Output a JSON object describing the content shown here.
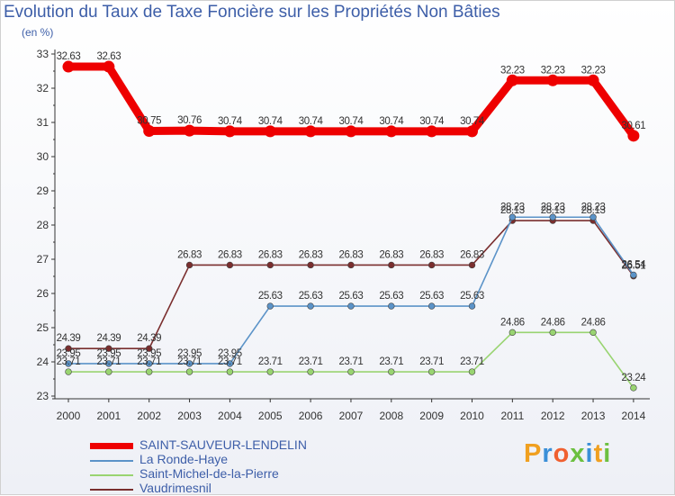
{
  "title": "Evolution du Taux de Taxe Foncière sur les Propriétés Non Bâties",
  "unit_label": "(en %)",
  "logo": {
    "text": "Proxiti",
    "colors": [
      "#f0a020",
      "#3a8fd8",
      "#f06030",
      "#6cc040",
      "#3a8fd8",
      "#f0a020",
      "#6cc040"
    ]
  },
  "chart_data": {
    "type": "line",
    "title": "Evolution du Taux de Taxe Foncière sur les Propriétés Non Bâties",
    "ylabel": "(en %)",
    "xlabel": "",
    "ylim": [
      23,
      33
    ],
    "yticks": [
      "23",
      "24",
      "25",
      "26",
      "27",
      "28",
      "29",
      "30",
      "31",
      "32",
      "33"
    ],
    "grid": false,
    "legend_position": "bottom",
    "categories": [
      "2000",
      "2001",
      "2002",
      "2003",
      "2004",
      "2005",
      "2006",
      "2007",
      "2008",
      "2009",
      "2010",
      "2011",
      "2012",
      "2013",
      "2014"
    ],
    "series": [
      {
        "name": "SAINT-SAUVEUR-LENDELIN",
        "color": "#ee0000",
        "values": [
          32.63,
          32.63,
          30.75,
          30.76,
          30.74,
          30.74,
          30.74,
          30.74,
          30.74,
          30.74,
          30.74,
          32.23,
          32.23,
          32.23,
          30.61
        ],
        "labels": [
          "32.63",
          "32.63",
          "30.75",
          "30.76",
          "30.74",
          "30.74",
          "30.74",
          "30.74",
          "30.74",
          "30.74",
          "30.74",
          "32.23",
          "32.23",
          "32.23",
          "30.61"
        ]
      },
      {
        "name": "La Ronde-Haye",
        "color": "#5b93c8",
        "values": [
          23.95,
          23.95,
          23.95,
          23.95,
          23.95,
          25.63,
          25.63,
          25.63,
          25.63,
          25.63,
          25.63,
          28.23,
          28.23,
          28.23,
          26.54
        ],
        "labels": [
          "23.95",
          "23.95",
          "23.95",
          "23.95",
          "23.95",
          "25.63",
          "25.63",
          "25.63",
          "25.63",
          "25.63",
          "25.63",
          "28.23",
          "28.23",
          "28.23",
          "26.54"
        ]
      },
      {
        "name": "Saint-Michel-de-la-Pierre",
        "color": "#99d471",
        "values": [
          23.71,
          23.71,
          23.71,
          23.71,
          23.71,
          23.71,
          23.71,
          23.71,
          23.71,
          23.71,
          23.71,
          24.86,
          24.86,
          24.86,
          23.24
        ],
        "labels": [
          "23.71",
          "23.71",
          "23.71",
          "23.71",
          "23.71",
          "23.71",
          "23.71",
          "23.71",
          "23.71",
          "23.71",
          "23.71",
          "24.86",
          "24.86",
          "24.86",
          "23.24"
        ]
      },
      {
        "name": "Vaudrimesnil",
        "color": "#7a2e2e",
        "values": [
          24.39,
          24.39,
          24.39,
          26.83,
          26.83,
          26.83,
          26.83,
          26.83,
          26.83,
          26.83,
          26.83,
          28.13,
          28.13,
          28.13,
          26.51
        ],
        "labels": [
          "24.39",
          "24.39",
          "24.39",
          "26.83",
          "26.83",
          "26.83",
          "26.83",
          "26.83",
          "26.83",
          "26.83",
          "26.83",
          "28.13",
          "28.13",
          "28.13",
          "26.51"
        ]
      }
    ]
  }
}
